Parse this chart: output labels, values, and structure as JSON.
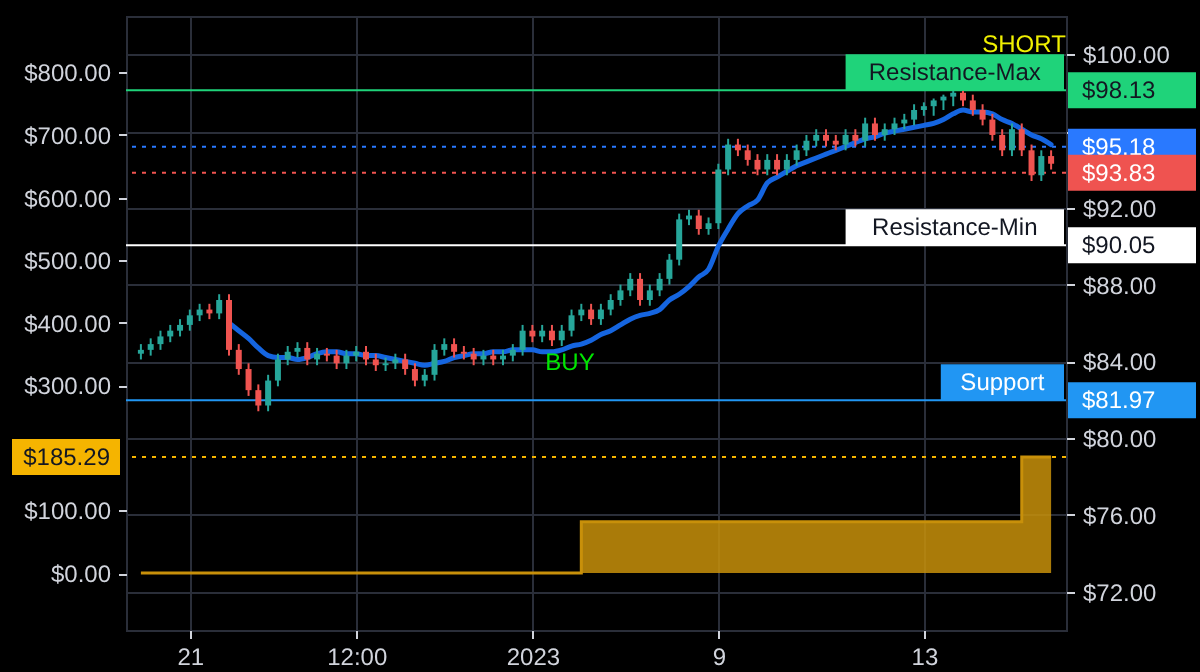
{
  "chart_data": {
    "type": "candlestick",
    "grid": true,
    "categories": [
      null,
      null,
      null,
      null,
      null,
      "21",
      null,
      null,
      null,
      null,
      null,
      null,
      null,
      null,
      null,
      null,
      null,
      null,
      null,
      null,
      null,
      null,
      "12:00",
      null,
      null,
      null,
      null,
      null,
      null,
      null,
      null,
      null,
      null,
      null,
      null,
      null,
      null,
      null,
      null,
      null,
      "2023",
      null,
      null,
      null,
      null,
      null,
      null,
      null,
      null,
      null,
      null,
      null,
      null,
      null,
      null,
      null,
      null,
      null,
      null,
      "9",
      null,
      null,
      null,
      null,
      null,
      null,
      null,
      null,
      null,
      null,
      null,
      null,
      null,
      null,
      null,
      null,
      null,
      null,
      null,
      null,
      "13",
      null,
      null,
      null,
      null,
      null,
      null,
      null,
      null,
      null,
      null,
      null,
      null,
      null
    ],
    "ylim": [
      -91,
      890
    ],
    "yticks": [
      {
        "value": 0,
        "label": "$0.00"
      },
      {
        "value": 100,
        "label": "$100.00"
      },
      {
        "value": 185.29,
        "label": "$185.29"
      },
      {
        "value": 300,
        "label": "$300.00"
      },
      {
        "value": 400,
        "label": "$400.00"
      },
      {
        "value": 500,
        "label": "$500.00"
      },
      {
        "value": 600,
        "label": "$600.00"
      },
      {
        "value": 700,
        "label": "$700.00"
      },
      {
        "value": 800,
        "label": "$800.00"
      }
    ],
    "y2lim": [
      70,
      102
    ],
    "y2ticks": [
      {
        "value": 72,
        "label": "$72.00"
      },
      {
        "value": 76,
        "label": "$76.00"
      },
      {
        "value": 80,
        "label": "$80.00"
      },
      {
        "value": 81.97,
        "label": "$81.97"
      },
      {
        "value": 84,
        "label": "$84.00"
      },
      {
        "value": 88,
        "label": "$88.00"
      },
      {
        "value": 90.05,
        "label": "$90.05"
      },
      {
        "value": 92,
        "label": "$92.00"
      },
      {
        "value": 93.83,
        "label": "$93.83"
      },
      {
        "value": 95.18,
        "label": "$95.18"
      },
      {
        "value": 96,
        "label": null
      },
      {
        "value": 98.13,
        "label": "$98.13"
      },
      {
        "value": 100,
        "label": "$100.00"
      }
    ],
    "series": [
      {
        "type": "area",
        "axis": "y",
        "color": "#c8900a",
        "values": [
          0,
          0,
          0,
          0,
          0,
          0,
          0,
          0,
          0,
          0,
          0,
          0,
          0,
          0,
          0,
          0,
          0,
          0,
          0,
          0,
          0,
          0,
          0,
          0,
          0,
          0,
          0,
          0,
          0,
          0,
          0,
          0,
          0,
          0,
          0,
          0,
          0,
          0,
          0,
          0,
          0,
          0,
          0,
          0,
          0,
          82,
          82,
          82,
          82,
          82,
          82,
          82,
          82,
          82,
          82,
          82,
          82,
          82,
          82,
          82,
          82,
          82,
          82,
          82,
          82,
          82,
          82,
          82,
          82,
          82,
          82,
          82,
          82,
          82,
          82,
          82,
          82,
          82,
          82,
          82,
          82,
          82,
          82,
          82,
          82,
          82,
          82,
          82,
          82,
          82,
          185.29,
          185.29,
          185.29,
          185.29
        ]
      },
      {
        "type": "line",
        "axis": "y2",
        "color": "#1565e0",
        "values": [
          null,
          null,
          null,
          null,
          null,
          null,
          null,
          null,
          null,
          86.0,
          85.6,
          85.2,
          84.7,
          84.3,
          84.2,
          84.2,
          84.1,
          84.2,
          84.4,
          84.5,
          84.5,
          84.4,
          84.4,
          84.3,
          84.3,
          84.2,
          84.1,
          84.0,
          83.9,
          83.8,
          83.9,
          84.0,
          84.2,
          84.3,
          84.4,
          84.4,
          84.5,
          84.5,
          84.6,
          84.6,
          84.6,
          84.5,
          84.5,
          84.6,
          84.8,
          84.9,
          85.1,
          85.4,
          85.6,
          85.9,
          86.2,
          86.4,
          86.5,
          86.7,
          87.2,
          87.5,
          87.9,
          88.4,
          88.8,
          90.0,
          90.9,
          91.7,
          92.1,
          92.4,
          93.3,
          93.6,
          93.9,
          94.2,
          94.4,
          94.6,
          94.8,
          95.0,
          95.2,
          95.4,
          95.6,
          95.7,
          95.9,
          96.0,
          96.1,
          96.2,
          96.3,
          96.4,
          96.6,
          96.9,
          97.1,
          97.0,
          97.0,
          96.9,
          96.6,
          96.4,
          96.1,
          95.8,
          95.6,
          95.3
        ]
      },
      {
        "axis": "y2",
        "colors": [
          "#26a69a",
          "#26a69a",
          "#26a69a",
          "#26a69a",
          "#26a69a",
          "#26a69a",
          "#26a69a",
          "#ef5350",
          "#26a69a",
          "#ef5350",
          "#ef5350",
          "#ef5350",
          "#ef5350",
          "#26a69a",
          "#26a69a",
          "#26a69a",
          "#26a69a",
          "#ef5350",
          "#26a69a",
          "#ef5350",
          "#ef5350",
          "#26a69a",
          "#26a69a",
          "#ef5350",
          "#ef5350",
          "#26a69a",
          "#26a69a",
          "#ef5350",
          "#ef5350",
          "#26a69a",
          "#26a69a",
          "#26a69a",
          "#ef5350",
          "#ef5350",
          "#ef5350",
          "#26a69a",
          "#ef5350",
          "#26a69a",
          "#26a69a",
          "#26a69a",
          "#ef5350",
          "#26a69a",
          "#ef5350",
          "#26a69a",
          "#26a69a",
          "#26a69a",
          "#ef5350",
          "#26a69a",
          "#26a69a",
          "#26a69a",
          "#26a69a",
          "#ef5350",
          "#26a69a",
          "#26a69a",
          "#26a69a",
          "#26a69a",
          "#26a69a",
          "#ef5350",
          "#26a69a",
          "#26a69a",
          "#26a69a",
          "#ef5350",
          "#ef5350",
          "#ef5350",
          "#26a69a",
          "#ef5350",
          "#26a69a",
          "#26a69a",
          "#26a69a",
          "#26a69a",
          "#ef5350",
          "#ef5350",
          "#26a69a",
          "#ef5350",
          "#26a69a",
          "#ef5350",
          "#26a69a",
          "#26a69a",
          "#26a69a",
          "#26a69a",
          "#26a69a",
          "#26a69a",
          "#26a69a",
          "#26a69a",
          "#ef5350",
          "#ef5350",
          "#ef5350",
          "#ef5350",
          "#ef5350",
          "#26a69a",
          "#ef5350",
          "#ef5350",
          "#26a69a",
          "#ef5350"
        ],
        "ohlc": [
          [
            84.4,
            84.9,
            84.1,
            84.6
          ],
          [
            84.6,
            85.2,
            84.3,
            84.9
          ],
          [
            84.9,
            85.6,
            84.6,
            85.3
          ],
          [
            85.3,
            85.9,
            85.0,
            85.6
          ],
          [
            85.6,
            86.2,
            85.3,
            85.9
          ],
          [
            85.9,
            86.7,
            85.6,
            86.4
          ],
          [
            86.4,
            87.0,
            86.1,
            86.7
          ],
          [
            86.7,
            87.0,
            86.2,
            86.5
          ],
          [
            86.5,
            87.5,
            86.2,
            87.2
          ],
          [
            87.2,
            87.5,
            84.3,
            84.6
          ],
          [
            84.6,
            84.9,
            83.3,
            83.6
          ],
          [
            83.6,
            83.9,
            82.2,
            82.5
          ],
          [
            82.5,
            82.8,
            81.4,
            81.7
          ],
          [
            81.7,
            83.3,
            81.4,
            83.0
          ],
          [
            83.0,
            84.4,
            82.7,
            84.1
          ],
          [
            84.1,
            84.8,
            83.8,
            84.5
          ],
          [
            84.5,
            85.0,
            84.2,
            84.7
          ],
          [
            84.7,
            85.0,
            83.8,
            84.1
          ],
          [
            84.1,
            84.7,
            83.8,
            84.4
          ],
          [
            84.4,
            84.7,
            84.0,
            84.3
          ],
          [
            84.3,
            84.6,
            83.6,
            83.9
          ],
          [
            83.9,
            84.6,
            83.6,
            84.3
          ],
          [
            84.3,
            84.8,
            84.0,
            84.5
          ],
          [
            84.5,
            84.8,
            83.8,
            84.1
          ],
          [
            84.1,
            84.4,
            83.5,
            83.8
          ],
          [
            83.8,
            84.2,
            83.5,
            83.9
          ],
          [
            83.9,
            84.4,
            83.6,
            84.1
          ],
          [
            84.1,
            84.4,
            83.3,
            83.6
          ],
          [
            83.6,
            83.9,
            82.7,
            83.0
          ],
          [
            83.0,
            83.6,
            82.7,
            83.3
          ],
          [
            83.3,
            84.9,
            83.0,
            84.6
          ],
          [
            84.6,
            85.2,
            84.3,
            84.9
          ],
          [
            84.9,
            85.2,
            84.2,
            84.5
          ],
          [
            84.5,
            84.8,
            84.1,
            84.4
          ],
          [
            84.4,
            84.7,
            83.8,
            84.1
          ],
          [
            84.1,
            84.6,
            83.8,
            84.3
          ],
          [
            84.3,
            84.6,
            83.8,
            84.1
          ],
          [
            84.1,
            84.6,
            83.8,
            84.3
          ],
          [
            84.3,
            84.9,
            84.0,
            84.6
          ],
          [
            84.6,
            85.9,
            84.3,
            85.6
          ],
          [
            85.6,
            85.9,
            85.0,
            85.3
          ],
          [
            85.3,
            85.9,
            85.0,
            85.6
          ],
          [
            85.6,
            85.9,
            84.8,
            85.1
          ],
          [
            85.1,
            85.9,
            84.8,
            85.6
          ],
          [
            85.6,
            86.7,
            85.3,
            86.4
          ],
          [
            86.4,
            87.0,
            86.1,
            86.7
          ],
          [
            86.7,
            87.0,
            85.9,
            86.2
          ],
          [
            86.2,
            87.0,
            85.9,
            86.7
          ],
          [
            86.7,
            87.5,
            86.4,
            87.2
          ],
          [
            87.2,
            88.0,
            86.9,
            87.7
          ],
          [
            87.7,
            88.6,
            87.4,
            88.3
          ],
          [
            88.3,
            88.6,
            86.9,
            87.2
          ],
          [
            87.2,
            88.0,
            86.9,
            87.7
          ],
          [
            87.7,
            88.6,
            87.4,
            88.3
          ],
          [
            88.3,
            89.6,
            88.0,
            89.3
          ],
          [
            89.3,
            91.7,
            89.0,
            91.4
          ],
          [
            91.4,
            91.9,
            91.1,
            91.6
          ],
          [
            91.6,
            91.9,
            90.6,
            90.9
          ],
          [
            90.9,
            91.5,
            90.6,
            91.2
          ],
          [
            91.2,
            94.3,
            90.9,
            94.0
          ],
          [
            94.0,
            95.6,
            93.7,
            95.3
          ],
          [
            95.3,
            95.6,
            94.7,
            95.0
          ],
          [
            95.0,
            95.3,
            94.2,
            94.5
          ],
          [
            94.5,
            94.8,
            93.7,
            94.0
          ],
          [
            94.0,
            94.8,
            93.7,
            94.5
          ],
          [
            94.5,
            94.8,
            93.7,
            94.0
          ],
          [
            94.0,
            94.8,
            93.7,
            94.5
          ],
          [
            94.5,
            95.3,
            94.2,
            95.0
          ],
          [
            95.0,
            95.8,
            94.7,
            95.5
          ],
          [
            95.5,
            96.1,
            95.2,
            95.8
          ],
          [
            95.8,
            96.1,
            95.2,
            95.5
          ],
          [
            95.5,
            95.8,
            95.0,
            95.3
          ],
          [
            95.3,
            96.1,
            95.0,
            95.8
          ],
          [
            95.8,
            96.1,
            95.2,
            95.5
          ],
          [
            95.5,
            96.7,
            95.2,
            96.4
          ],
          [
            96.4,
            96.7,
            95.5,
            95.8
          ],
          [
            95.8,
            96.4,
            95.5,
            96.1
          ],
          [
            96.1,
            96.7,
            95.8,
            96.4
          ],
          [
            96.4,
            96.9,
            96.1,
            96.6
          ],
          [
            96.6,
            97.4,
            96.3,
            97.1
          ],
          [
            97.1,
            97.5,
            96.8,
            97.3
          ],
          [
            97.3,
            97.7,
            96.8,
            97.6
          ],
          [
            97.6,
            97.9,
            97.1,
            97.8
          ],
          [
            97.8,
            98.1,
            97.3,
            98.0
          ],
          [
            98.0,
            98.1,
            97.3,
            97.6
          ],
          [
            97.6,
            97.9,
            96.8,
            97.1
          ],
          [
            97.1,
            97.4,
            96.3,
            96.6
          ],
          [
            96.6,
            96.9,
            95.5,
            95.8
          ],
          [
            95.8,
            96.1,
            94.7,
            95.0
          ],
          [
            95.0,
            96.4,
            94.7,
            96.1
          ],
          [
            96.1,
            96.4,
            94.7,
            95.0
          ],
          [
            95.0,
            95.3,
            93.4,
            93.7
          ],
          [
            93.7,
            95.0,
            93.4,
            94.7
          ],
          [
            94.7,
            95.0,
            94.0,
            94.3
          ]
        ]
      }
    ],
    "ref_lines": [
      {
        "axis": "y2",
        "value": 98.13,
        "label": "Resistance-Max",
        "color": "#1fd37a"
      },
      {
        "axis": "y2",
        "value": 95.18,
        "color": "#2979ff",
        "line_style": "dotted"
      },
      {
        "axis": "y2",
        "value": 93.83,
        "color": "#ef5350",
        "line_style": "dotted"
      },
      {
        "axis": "y2",
        "value": 90.05,
        "label": "Resistance-Min",
        "color": "#ffffff"
      },
      {
        "axis": "y2",
        "value": 81.97,
        "label": "Support",
        "color": "#2196f3"
      },
      {
        "axis": "y",
        "value": 185.29,
        "color": "#f5b400",
        "line_style": "dotted"
      }
    ],
    "annotations": [
      "BUY",
      "SHORT"
    ]
  }
}
